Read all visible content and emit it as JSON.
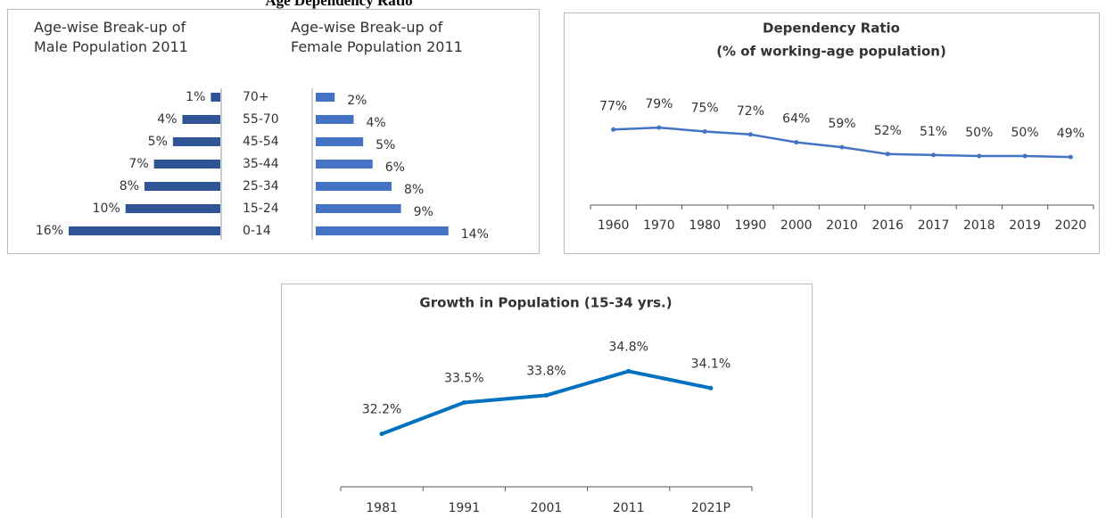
{
  "title": "Age Dependency Ratio",
  "chart_data": [
    {
      "type": "butterfly",
      "categories": [
        "70+",
        "55-70",
        "45-54",
        "35-44",
        "25-34",
        "15-24",
        "0-14"
      ],
      "xlim": [
        0,
        16
      ],
      "series": [
        {
          "name": "Age-wise Break-up of Male Population 2011",
          "color": "#2f5597",
          "values": [
            1,
            4,
            5,
            7,
            8,
            10,
            16
          ],
          "value_labels": [
            "1%",
            "4%",
            "5%",
            "7%",
            "8%",
            "10%",
            "16%"
          ]
        },
        {
          "name": "Age-wise Break-up of Female Population 2011",
          "color": "#4472c4",
          "values": [
            2,
            4,
            5,
            6,
            8,
            9,
            14
          ],
          "value_labels": [
            "2%",
            "4%",
            "5%",
            "6%",
            "8%",
            "9%",
            "14%"
          ]
        }
      ]
    },
    {
      "type": "line",
      "title": "Dependency Ratio",
      "subtitle": "(% of working-age population)",
      "categories": [
        "1960",
        "1970",
        "1980",
        "1990",
        "2000",
        "2010",
        "2016",
        "2017",
        "2018",
        "2019",
        "2020"
      ],
      "values": [
        77,
        79,
        75,
        72,
        64,
        59,
        52,
        51,
        50,
        50,
        49
      ],
      "value_labels": [
        "77%",
        "79%",
        "75%",
        "72%",
        "64%",
        "59%",
        "52%",
        "51%",
        "50%",
        "50%",
        "49%"
      ],
      "color": "#4472c4",
      "ylim": [
        0,
        100
      ]
    },
    {
      "type": "line",
      "title": "Growth in Population (15-34 yrs.)",
      "categories": [
        "1981",
        "1991",
        "2001",
        "2011",
        "2021P"
      ],
      "values": [
        32.2,
        33.5,
        33.8,
        34.8,
        34.1
      ],
      "value_labels": [
        "32.2%",
        "33.5%",
        "33.8%",
        "34.8%",
        "34.1%"
      ],
      "color": "#0070c0",
      "ylim": [
        30,
        36
      ]
    }
  ]
}
